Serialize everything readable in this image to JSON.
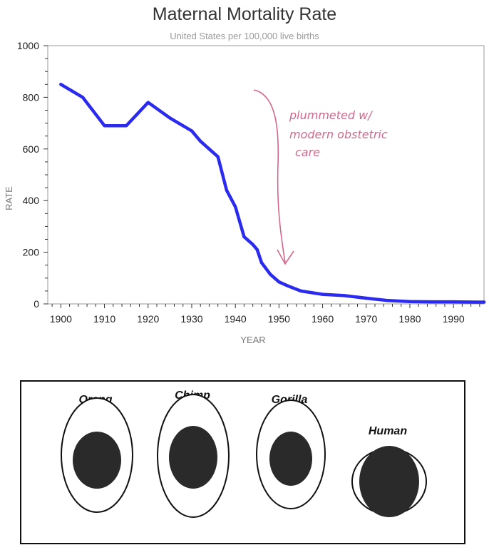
{
  "chart_data": {
    "type": "line",
    "title": "Maternal Mortality Rate",
    "subtitle": "United States per 100,000 live births",
    "xlabel": "YEAR",
    "ylabel": "RATE",
    "xlim": [
      1897,
      1997
    ],
    "ylim": [
      0,
      1000
    ],
    "xticks": [
      1900,
      1910,
      1920,
      1930,
      1940,
      1950,
      1960,
      1970,
      1980,
      1990
    ],
    "yticks": [
      0,
      200,
      400,
      600,
      800,
      1000
    ],
    "series": [
      {
        "name": "Maternal Mortality Rate",
        "color": "#2b2bf0",
        "x": [
          1900,
          1905,
          1910,
          1915,
          1920,
          1925,
          1930,
          1932,
          1934,
          1936,
          1938,
          1940,
          1942,
          1944,
          1945,
          1946,
          1948,
          1950,
          1952,
          1955,
          1960,
          1965,
          1970,
          1975,
          1980,
          1985,
          1990,
          1995,
          1997
        ],
        "values": [
          850,
          800,
          690,
          690,
          780,
          720,
          670,
          630,
          600,
          570,
          440,
          376,
          260,
          230,
          210,
          160,
          115,
          85,
          70,
          50,
          37,
          32,
          22,
          13,
          9,
          8,
          8,
          7,
          7
        ]
      }
    ],
    "annotation": {
      "lines": [
        "plummeted w/",
        "modern obstetric",
        "care"
      ],
      "color": "#d2688a"
    }
  },
  "figure": {
    "labels": [
      "Orang",
      "Chimp",
      "Gorilla",
      "Human"
    ]
  }
}
